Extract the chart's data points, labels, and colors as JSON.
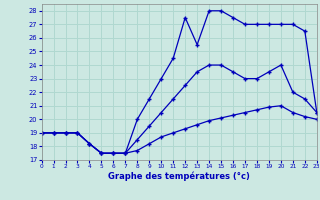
{
  "xlabel": "Graphe des températures (°c)",
  "background_color": "#cce8e2",
  "grid_color": "#b0d8d0",
  "line_color": "#0000bb",
  "xlim": [
    0,
    23
  ],
  "ylim": [
    17,
    28.5
  ],
  "yticks": [
    17,
    18,
    19,
    20,
    21,
    22,
    23,
    24,
    25,
    26,
    27,
    28
  ],
  "xticks": [
    0,
    1,
    2,
    3,
    4,
    5,
    6,
    7,
    8,
    9,
    10,
    11,
    12,
    13,
    14,
    15,
    16,
    17,
    18,
    19,
    20,
    21,
    22,
    23
  ],
  "line1_x": [
    0,
    1,
    2,
    3,
    4,
    5,
    6,
    7,
    8,
    9,
    10,
    11,
    12,
    13,
    14,
    15,
    16,
    17,
    18,
    19,
    20,
    21,
    22,
    23
  ],
  "line1_y": [
    19.0,
    19.0,
    19.0,
    19.0,
    18.2,
    17.5,
    17.5,
    17.5,
    17.7,
    18.2,
    18.7,
    19.0,
    19.3,
    19.6,
    19.9,
    20.1,
    20.3,
    20.5,
    20.7,
    20.9,
    21.0,
    20.5,
    20.2,
    20.0
  ],
  "line2_x": [
    0,
    1,
    2,
    3,
    4,
    5,
    6,
    7,
    8,
    9,
    10,
    11,
    12,
    13,
    14,
    15,
    16,
    17,
    18,
    19,
    20,
    21,
    22,
    23
  ],
  "line2_y": [
    19.0,
    19.0,
    19.0,
    19.0,
    18.2,
    17.5,
    17.5,
    17.5,
    18.5,
    19.5,
    20.5,
    21.5,
    22.5,
    23.5,
    24.0,
    24.0,
    23.5,
    23.0,
    23.0,
    23.5,
    24.0,
    22.0,
    21.5,
    20.5
  ],
  "line3_x": [
    0,
    1,
    2,
    3,
    4,
    5,
    6,
    7,
    8,
    9,
    10,
    11,
    12,
    13,
    14,
    15,
    16,
    17,
    18,
    19,
    20,
    21,
    22,
    23
  ],
  "line3_y": [
    19.0,
    19.0,
    19.0,
    19.0,
    18.2,
    17.5,
    17.5,
    17.5,
    20.0,
    21.5,
    23.0,
    24.5,
    27.5,
    25.5,
    28.0,
    28.0,
    27.5,
    27.0,
    27.0,
    27.0,
    27.0,
    27.0,
    26.5,
    20.5
  ]
}
